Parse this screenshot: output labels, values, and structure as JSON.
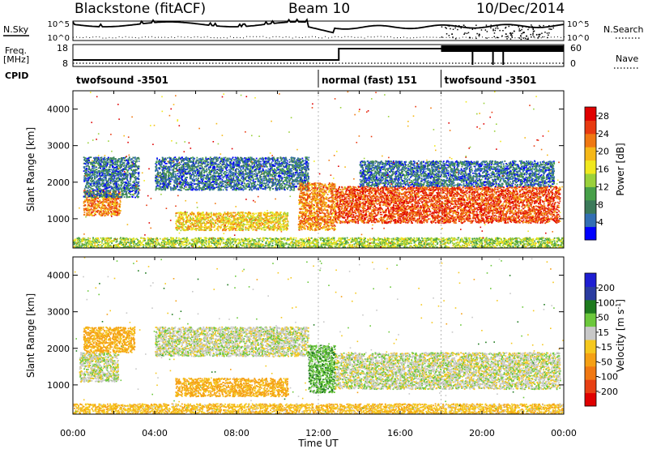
{
  "header": {
    "station": "Blackstone (fitACF)",
    "beam": "Beam 10",
    "date": "10/Dec/2014"
  },
  "left_labels": {
    "nsky": "N.Sky",
    "freq": "Freq.",
    "freq_unit": "[MHz]",
    "cpid": "CPID"
  },
  "right_labels": {
    "nsearch": "N.Search",
    "nave": "Nave"
  },
  "ticks": {
    "noise_hi": "10^5",
    "noise_lo": "10^0",
    "freq_hi": "18",
    "freq_lo": "8",
    "nave_hi": "60",
    "nave_lo": "0"
  },
  "cpid_segments": [
    {
      "label": "twofsound -3501",
      "start": 0.0,
      "end": 12.0
    },
    {
      "label": "normal (fast) 151",
      "start": 12.0,
      "end": 18.0
    },
    {
      "label": "twofsound -3501",
      "start": 18.0,
      "end": 24.0
    }
  ],
  "colors": {
    "power": [
      "#0000ff",
      "#336fb4",
      "#3c7a5a",
      "#47a049",
      "#9ad13b",
      "#f0e81e",
      "#f5b818",
      "#f07812",
      "#e83a10",
      "#e00000"
    ],
    "velocity": [
      "#1e1ed2",
      "#2a3ca0",
      "#1e7a1e",
      "#6cc83c",
      "#c8c8c8",
      "#f5c81e",
      "#f5a014",
      "#f07812",
      "#e84014",
      "#e00000"
    ]
  },
  "chart_data": [
    {
      "type": "heatmap",
      "title": "",
      "xlabel": "",
      "ylabel": "Slant Range [km]",
      "xlim": [
        0,
        24
      ],
      "ylim": [
        200,
        4500
      ],
      "yticks": [
        1000,
        2000,
        3000,
        4000
      ],
      "colorbar": {
        "label": "Power [dB]",
        "range": [
          0,
          30
        ],
        "ticks": [
          4,
          8,
          12,
          16,
          20,
          24,
          28
        ]
      },
      "regions": [
        {
          "t": [
            0.5,
            2.3
          ],
          "r": [
            1100,
            1800
          ],
          "value": 22
        },
        {
          "t": [
            0.5,
            3.2
          ],
          "r": [
            1600,
            2700
          ],
          "value": 6
        },
        {
          "t": [
            5.0,
            10.5
          ],
          "r": [
            700,
            1200
          ],
          "value": 18
        },
        {
          "t": [
            4.0,
            11.5
          ],
          "r": [
            1800,
            2700
          ],
          "value": 6
        },
        {
          "t": [
            11.0,
            12.8
          ],
          "r": [
            700,
            2000
          ],
          "value": 22
        },
        {
          "t": [
            12.8,
            23.8
          ],
          "r": [
            900,
            1900
          ],
          "value": 25
        },
        {
          "t": [
            14.0,
            23.5
          ],
          "r": [
            1900,
            2600
          ],
          "value": 6
        },
        {
          "t": [
            0.0,
            24.0
          ],
          "r": [
            200,
            500
          ],
          "value": 14
        }
      ]
    },
    {
      "type": "heatmap",
      "title": "",
      "xlabel": "Time UT",
      "ylabel": "Slant Range [km]",
      "xlim": [
        0,
        24
      ],
      "ylim": [
        200,
        4500
      ],
      "yticks": [
        1000,
        2000,
        3000,
        4000
      ],
      "xticks": [
        "00:00",
        "04:00",
        "08:00",
        "12:00",
        "16:00",
        "20:00",
        "00:00"
      ],
      "colorbar": {
        "label": "Velocity [m s^-1]",
        "range": [
          -250,
          250
        ],
        "ticks": [
          200,
          100,
          50,
          15,
          -15,
          -50,
          -100,
          -200
        ]
      },
      "regions": [
        {
          "t": [
            0.3,
            2.2
          ],
          "r": [
            1100,
            1900
          ],
          "value": 0
        },
        {
          "t": [
            0.5,
            3.0
          ],
          "r": [
            1900,
            2600
          ],
          "value": -60
        },
        {
          "t": [
            5.0,
            10.5
          ],
          "r": [
            700,
            1200
          ],
          "value": -60
        },
        {
          "t": [
            4.0,
            11.5
          ],
          "r": [
            1800,
            2600
          ],
          "value": 0
        },
        {
          "t": [
            11.5,
            12.8
          ],
          "r": [
            800,
            2100
          ],
          "value": 40
        },
        {
          "t": [
            12.8,
            23.8
          ],
          "r": [
            900,
            1900
          ],
          "value": 0
        },
        {
          "t": [
            0.0,
            24.0
          ],
          "r": [
            200,
            500
          ],
          "value": -40
        }
      ]
    }
  ]
}
